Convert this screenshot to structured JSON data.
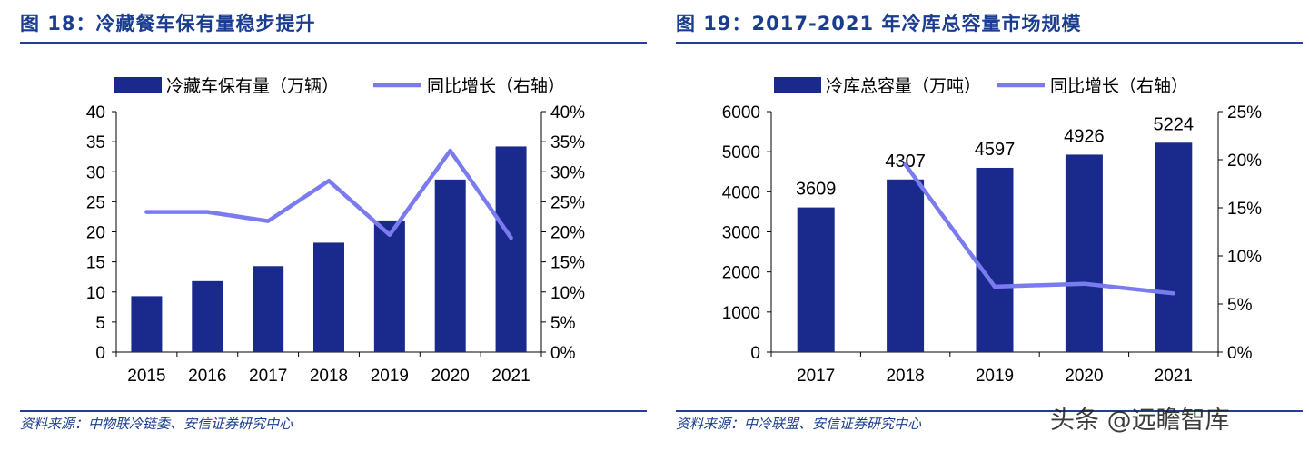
{
  "watermark": "头条 @远瞻智库",
  "charts": [
    {
      "title": "图 18：冷藏餐车保有量稳步提升",
      "source": "资料来源：中物联冷链委、安信证券研究中心",
      "chart_data": {
        "type": "bar",
        "categories": [
          "2015",
          "2016",
          "2017",
          "2018",
          "2019",
          "2020",
          "2021"
        ],
        "series": [
          {
            "name": "冷藏车保有量（万辆）",
            "type": "bar",
            "axis": "left",
            "values": [
              9.3,
              11.8,
              14.3,
              18.2,
              21.9,
              28.7,
              34.2
            ]
          },
          {
            "name": "同比增长（右轴）",
            "type": "line",
            "axis": "right",
            "values": [
              0.233,
              0.233,
              0.218,
              0.285,
              0.195,
              0.335,
              0.19
            ]
          }
        ],
        "left_axis": {
          "min": 0,
          "max": 40,
          "step": 5,
          "tick_labels": [
            "0",
            "5",
            "10",
            "15",
            "20",
            "25",
            "30",
            "35",
            "40"
          ]
        },
        "right_axis": {
          "min": 0,
          "max": 0.4,
          "step": 0.05,
          "tick_labels": [
            "0%",
            "5%",
            "10%",
            "15%",
            "20%",
            "25%",
            "30%",
            "35%",
            "40%"
          ]
        },
        "legend_position": "top",
        "bar_color": "#1a2a8c",
        "line_color": "#7b7bf0"
      }
    },
    {
      "title": "图 19：2017-2021 年冷库总容量市场规模",
      "source": "资料来源：中冷联盟、安信证券研究中心",
      "chart_data": {
        "type": "bar",
        "categories": [
          "2017",
          "2018",
          "2019",
          "2020",
          "2021"
        ],
        "series": [
          {
            "name": "冷库总容量（万吨）",
            "type": "bar",
            "axis": "left",
            "values": [
              3609,
              4307,
              4597,
              4926,
              5224
            ],
            "data_labels": [
              "3609",
              "4307",
              "4597",
              "4926",
              "5224"
            ]
          },
          {
            "name": "同比增长（右轴）",
            "type": "line",
            "axis": "right",
            "values": [
              null,
              0.195,
              0.068,
              0.071,
              0.061
            ]
          }
        ],
        "left_axis": {
          "min": 0,
          "max": 6000,
          "step": 1000,
          "tick_labels": [
            "0",
            "1000",
            "2000",
            "3000",
            "4000",
            "5000",
            "6000"
          ]
        },
        "right_axis": {
          "min": 0,
          "max": 0.25,
          "step": 0.05,
          "tick_labels": [
            "0%",
            "5%",
            "10%",
            "15%",
            "20%",
            "25%"
          ]
        },
        "legend_position": "top",
        "bar_color": "#1a2a8c",
        "line_color": "#7b7bf0"
      }
    }
  ]
}
